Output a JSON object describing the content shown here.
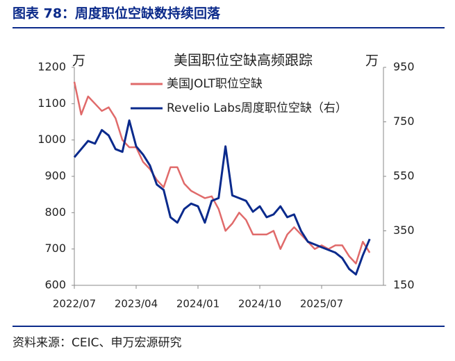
{
  "header": {
    "title": "图表 78：周度职位空缺数持续回落"
  },
  "chart_data": {
    "type": "line",
    "title": "美国职位空缺高频跟踪",
    "y_unit": "万",
    "y2_unit": "万",
    "x": [
      "2022/07",
      "2022/08",
      "2022/09",
      "2022/10",
      "2022/11",
      "2022/12",
      "2023/01",
      "2023/02",
      "2023/03",
      "2023/04",
      "2023/05",
      "2023/06",
      "2023/07",
      "2023/08",
      "2023/09",
      "2023/10",
      "2023/11",
      "2023/12",
      "2024/01",
      "2024/02",
      "2024/03",
      "2024/04",
      "2024/05",
      "2024/06",
      "2024/07",
      "2024/08",
      "2024/09",
      "2024/10",
      "2024/11",
      "2024/12",
      "2025/01",
      "2025/02",
      "2025/03",
      "2025/04",
      "2025/05",
      "2025/06",
      "2025/07",
      "2025/08",
      "2025/09",
      "2025/10",
      "2025/11",
      "2025/12",
      "2026/01",
      "2026/02"
    ],
    "xlim": [
      "2022/07",
      "2026/04"
    ],
    "xticks": [
      "2022/07",
      "2023/04",
      "2024/01",
      "2024/10",
      "2025/07"
    ],
    "ylim": [
      600,
      1200
    ],
    "yticks": [
      600,
      700,
      800,
      900,
      1000,
      1100,
      1200
    ],
    "y2lim": [
      150,
      950
    ],
    "y2ticks": [
      150,
      350,
      550,
      750,
      950
    ],
    "series": [
      {
        "name": "美国JOLT职位空缺",
        "color": "#e06a6a",
        "values": [
          1160,
          1070,
          1120,
          1100,
          1080,
          1090,
          1060,
          1000,
          980,
          980,
          940,
          920,
          890,
          870,
          925,
          925,
          880,
          860,
          850,
          840,
          845,
          810,
          750,
          770,
          800,
          780,
          740,
          740,
          740,
          750,
          700,
          740,
          760,
          740,
          720,
          700,
          710,
          700,
          710,
          710,
          680,
          660,
          720,
          690
        ]
      },
      {
        "name": "Revelio Labs周度职位空缺（右）",
        "color": "#0a2a8c",
        "axis": "y2",
        "values": [
          620,
          650,
          680,
          670,
          720,
          700,
          650,
          640,
          755,
          660,
          630,
          590,
          520,
          500,
          400,
          380,
          430,
          450,
          440,
          380,
          460,
          470,
          660,
          480,
          470,
          460,
          420,
          440,
          400,
          410,
          440,
          400,
          410,
          350,
          310,
          300,
          290,
          280,
          270,
          250,
          210,
          190,
          260,
          320
        ]
      }
    ]
  },
  "footer": {
    "source": "资料来源：CEIC、申万宏源研究"
  }
}
